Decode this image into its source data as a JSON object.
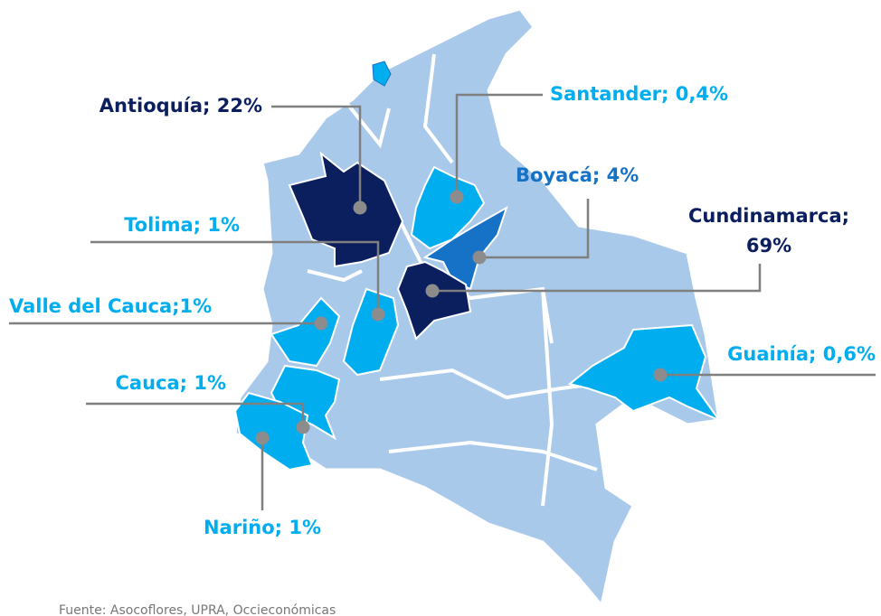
{
  "map": {
    "regions": [
      {
        "label_lines": [
          "Antioquía; 22%"
        ],
        "color": "#0b1f5e"
      },
      {
        "label_lines": [
          "Santander; 0,4%"
        ],
        "color": "#00aeef"
      },
      {
        "label_lines": [
          "Boyacá; 4%"
        ],
        "color": "#1672c6"
      },
      {
        "label_lines": [
          "Cundinamarca;",
          "69%"
        ],
        "color": "#0b1f5e"
      },
      {
        "label_lines": [
          "Tolima; 1%"
        ],
        "color": "#00aeef"
      },
      {
        "label_lines": [
          "Valle del Cauca;1%"
        ],
        "color": "#00aeef"
      },
      {
        "label_lines": [
          "Guainía; 0,6%"
        ],
        "color": "#00aeef"
      },
      {
        "label_lines": [
          "Cauca; 1%"
        ],
        "color": "#00aeef"
      },
      {
        "label_lines": [
          "Nariño; 1%"
        ],
        "color": "#00aeef"
      }
    ],
    "source": "Fuente: Asocoflores, UPRA, Occieconómicas"
  }
}
